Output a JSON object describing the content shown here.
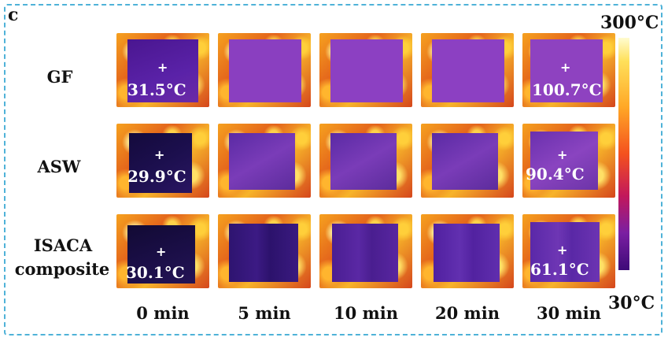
{
  "panel_label": "c",
  "row_labels": [
    "GF",
    "ASW",
    "ISACA",
    "composite"
  ],
  "column_labels": [
    "0 min",
    "5 min",
    "10 min",
    "20 min",
    "30 min"
  ],
  "temperatures": {
    "gf_0": "31.5°C",
    "gf_30": "100.7°C",
    "asw_0": "29.9°C",
    "asw_30": "90.4°C",
    "isaca_0": "30.1°C",
    "isaca_30": "61.1°C"
  },
  "crosshair_symbol": "+",
  "colorbar": {
    "max_label": "300°C",
    "min_label": "30°C"
  },
  "colors": {
    "frame": "#4fb2d8",
    "hot": "#f7b42a",
    "cold": "#3d0a78"
  }
}
